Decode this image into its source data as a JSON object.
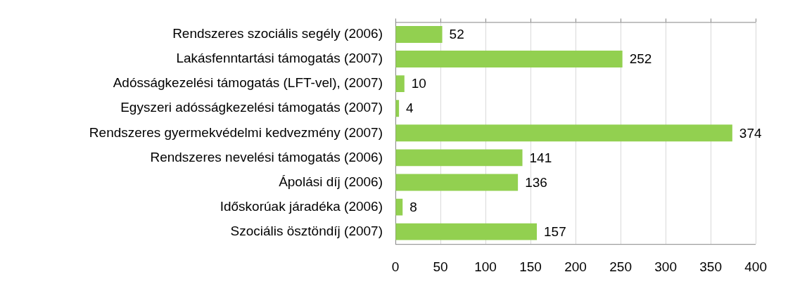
{
  "chart_data": {
    "type": "bar",
    "orientation": "horizontal",
    "categories": [
      "Rendszeres szociális segély (2006)",
      "Lakásfenntartási támogatás (2007)",
      "Adósságkezelési támogatás (LFT-vel), (2007)",
      "Egyszeri adósságkezelési támogatás (2007)",
      "Rendszeres gyermekvédelmi kedvezmény (2007)",
      "Rendszeres nevelési támogatás (2006)",
      "Ápolási díj (2006)",
      "Időskorúak járadéka (2006)",
      "Szociális ösztöndíj (2007)"
    ],
    "values": [
      52,
      252,
      10,
      4,
      374,
      141,
      136,
      8,
      157
    ],
    "color": "#92d050",
    "xlim": [
      0,
      400
    ],
    "xticks": [
      0,
      50,
      100,
      150,
      200,
      250,
      300,
      350,
      400
    ],
    "grid": "x",
    "data_labels": true,
    "legend": false
  }
}
